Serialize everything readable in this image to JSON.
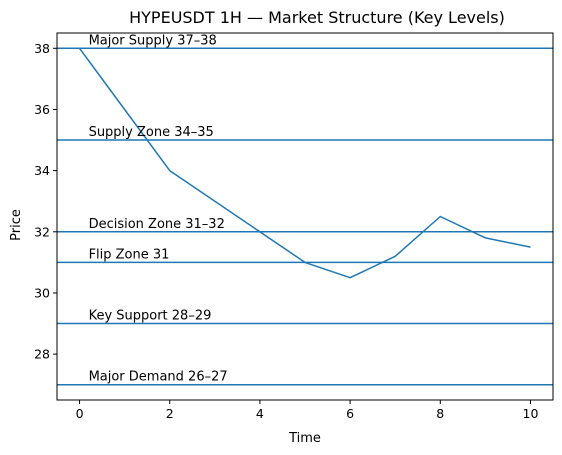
{
  "chart_data": {
    "type": "line",
    "title": "HYPEUSDT 1H — Market Structure (Key Levels)",
    "xlabel": "Time",
    "ylabel": "Price",
    "xlim": [
      -0.5,
      10.5
    ],
    "ylim": [
      26.5,
      38.5
    ],
    "x_ticks": [
      0,
      2,
      4,
      6,
      8,
      10
    ],
    "y_ticks": [
      28,
      30,
      32,
      34,
      36,
      38
    ],
    "grid": false,
    "series": [
      {
        "x": [
          0,
          2,
          5,
          6,
          7,
          8,
          9,
          10
        ],
        "values": [
          38,
          34,
          31,
          30.5,
          31.2,
          32.5,
          31.8,
          31.5
        ],
        "color": "#1f77b4"
      }
    ],
    "levels": [
      {
        "y": 38,
        "label": "Major Supply 37–38"
      },
      {
        "y": 35,
        "label": "Supply Zone 34–35"
      },
      {
        "y": 32,
        "label": "Decision Zone 31–32"
      },
      {
        "y": 31,
        "label": "Flip Zone 31"
      },
      {
        "y": 29,
        "label": "Key Support 28–29"
      },
      {
        "y": 27,
        "label": "Major Demand 26–27"
      }
    ],
    "level_color": "#1f77b4",
    "level_label_x": 0.2
  }
}
